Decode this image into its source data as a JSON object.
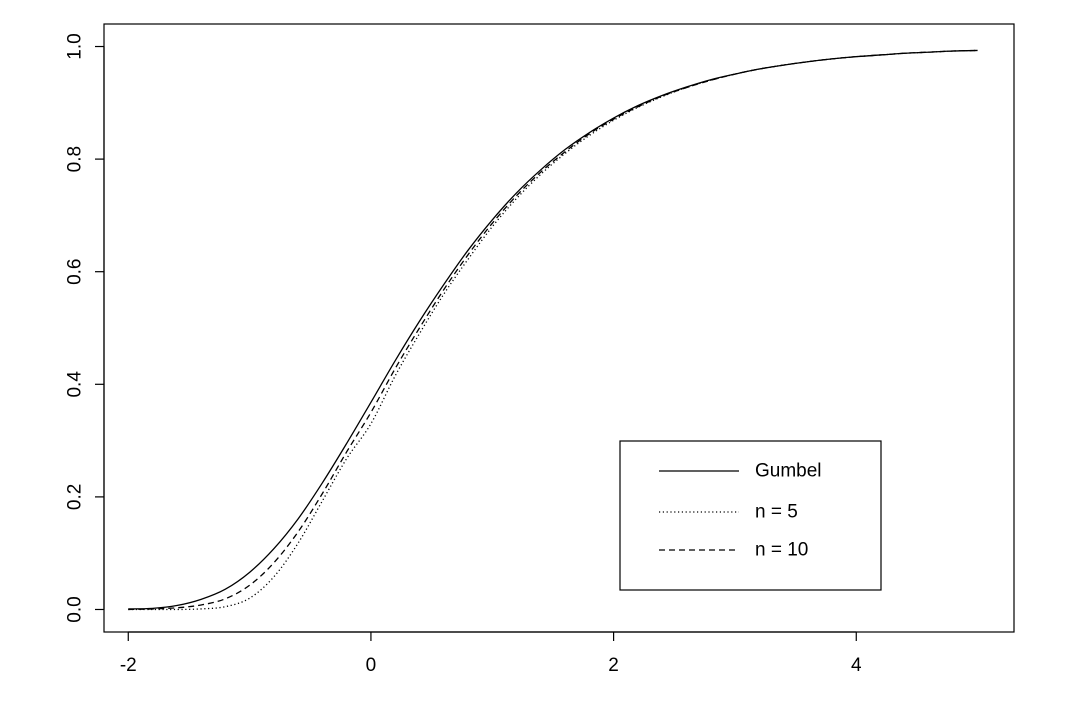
{
  "chart_data": {
    "type": "line",
    "title": "",
    "xlabel": "",
    "ylabel": "",
    "xlim": [
      -2.2,
      5.3
    ],
    "ylim": [
      -0.04,
      1.04
    ],
    "xticks": [
      -2,
      0,
      2,
      4
    ],
    "xtick_labels": [
      "-2",
      "0",
      "2",
      "4"
    ],
    "yticks": [
      0.0,
      0.2,
      0.4,
      0.6,
      0.8,
      1.0
    ],
    "ytick_labels": [
      "0.0",
      "0.2",
      "0.4",
      "0.6",
      "0.8",
      "1.0"
    ],
    "grid": false,
    "legend_position": "bottom-right",
    "x": [
      -2.0,
      -1.8,
      -1.6,
      -1.4,
      -1.2,
      -1.0,
      -0.8,
      -0.6,
      -0.4,
      -0.2,
      0.0,
      0.2,
      0.4,
      0.6,
      0.8,
      1.0,
      1.2,
      1.4,
      1.6,
      1.8,
      2.0,
      2.2,
      2.4,
      2.6,
      2.8,
      3.0,
      3.2,
      3.4,
      3.6,
      3.8,
      4.0,
      4.2,
      4.4,
      4.6,
      4.8,
      5.0
    ],
    "series": [
      {
        "name": "Gumbel",
        "style": "solid",
        "values": [
          0.001,
          0.002,
          0.007,
          0.018,
          0.036,
          0.066,
          0.108,
          0.161,
          0.225,
          0.295,
          0.368,
          0.442,
          0.512,
          0.577,
          0.638,
          0.692,
          0.74,
          0.781,
          0.817,
          0.847,
          0.873,
          0.895,
          0.913,
          0.928,
          0.941,
          0.951,
          0.96,
          0.967,
          0.973,
          0.978,
          0.982,
          0.985,
          0.988,
          0.99,
          0.992,
          0.993
        ]
      },
      {
        "name": "n = 5",
        "style": "dotted",
        "values": [
          0.0,
          0.0,
          0.0,
          0.001,
          0.005,
          0.02,
          0.058,
          0.118,
          0.193,
          0.268,
          0.33,
          0.415,
          0.49,
          0.56,
          0.622,
          0.68,
          0.73,
          0.773,
          0.81,
          0.842,
          0.869,
          0.892,
          0.911,
          0.927,
          0.94,
          0.951,
          0.96,
          0.967,
          0.973,
          0.978,
          0.982,
          0.985,
          0.988,
          0.99,
          0.992,
          0.993
        ]
      },
      {
        "name": "n = 10",
        "style": "dashed",
        "values": [
          0.0,
          0.001,
          0.003,
          0.008,
          0.019,
          0.043,
          0.083,
          0.138,
          0.206,
          0.28,
          0.35,
          0.428,
          0.5,
          0.568,
          0.63,
          0.686,
          0.735,
          0.777,
          0.813,
          0.845,
          0.871,
          0.893,
          0.912,
          0.927,
          0.94,
          0.951,
          0.96,
          0.967,
          0.973,
          0.978,
          0.982,
          0.985,
          0.988,
          0.99,
          0.992,
          0.993
        ]
      }
    ]
  }
}
